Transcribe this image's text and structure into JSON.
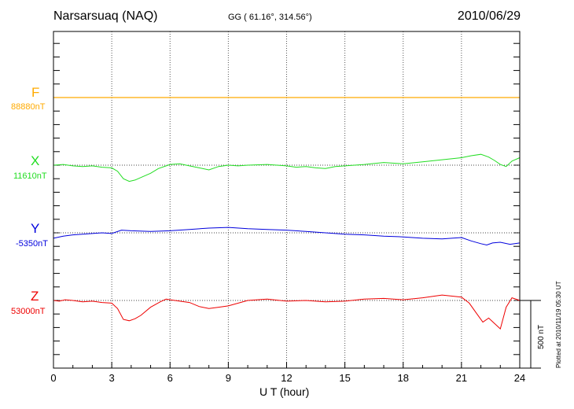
{
  "header": {
    "station": "Narsarsuaq (NAQ)",
    "coords": "GG ( 61.16°, 314.56°)",
    "date": "2010/06/29"
  },
  "scale_label": "500 nT",
  "plotted_stamp": "Plotted at 2010/11/19 05:30 UT",
  "chart_data": {
    "type": "line",
    "xlabel": "U T (hour)",
    "xlim": [
      0,
      24
    ],
    "xticks": [
      0,
      3,
      6,
      9,
      12,
      15,
      18,
      21,
      24
    ],
    "scale_bar_nT": 500,
    "series": [
      {
        "name": "F",
        "baseline": "88880nT",
        "color": "#ffaa00",
        "x": [
          0,
          24
        ],
        "y": [
          0,
          0
        ]
      },
      {
        "name": "X",
        "baseline": "11610nT",
        "color": "#22dd22",
        "x": [
          0,
          0.5,
          1,
          1.5,
          2,
          2.5,
          3,
          3.3,
          3.6,
          3.9,
          4.2,
          4.6,
          5,
          5.4,
          5.8,
          6,
          6.5,
          7,
          7.5,
          8,
          8.5,
          9,
          9.5,
          10,
          11,
          12,
          12.5,
          13,
          13.5,
          14,
          14.5,
          15,
          15.5,
          16,
          17,
          18,
          19,
          20,
          21,
          21.5,
          22,
          22.4,
          22.7,
          23,
          23.3,
          23.6,
          24
        ],
        "y": [
          0,
          5,
          -5,
          -10,
          -5,
          -15,
          -20,
          -45,
          -100,
          -120,
          -110,
          -85,
          -60,
          -25,
          -5,
          5,
          10,
          -5,
          -20,
          -35,
          -10,
          0,
          -5,
          0,
          5,
          -5,
          -15,
          -10,
          -20,
          -25,
          -10,
          -5,
          0,
          5,
          20,
          10,
          25,
          40,
          55,
          70,
          80,
          60,
          35,
          5,
          -10,
          30,
          55
        ]
      },
      {
        "name": "Y",
        "baseline": "-5350nT",
        "color": "#0000dd",
        "x": [
          0,
          0.5,
          1,
          1.5,
          2,
          2.5,
          3,
          3.5,
          4,
          5,
          6,
          7,
          8,
          9,
          10,
          11,
          12,
          13,
          14,
          15,
          16,
          17,
          18,
          19,
          20,
          21,
          21.5,
          22,
          22.3,
          22.6,
          23,
          23.5,
          24
        ],
        "y": [
          -40,
          -25,
          -15,
          -10,
          -5,
          0,
          -5,
          20,
          15,
          10,
          15,
          25,
          35,
          40,
          30,
          25,
          20,
          10,
          0,
          -10,
          -15,
          -25,
          -30,
          -40,
          -45,
          -35,
          -60,
          -80,
          -90,
          -75,
          -70,
          -85,
          -75
        ]
      },
      {
        "name": "Z",
        "baseline": "53000nT",
        "color": "#ee0000",
        "x": [
          0,
          0.3,
          0.6,
          1,
          1.5,
          2,
          2.5,
          3,
          3.3,
          3.6,
          3.9,
          4.2,
          4.5,
          5,
          5.5,
          5.8,
          6,
          6.5,
          7,
          7.5,
          8,
          8.5,
          9,
          10,
          11,
          12,
          13,
          14,
          15,
          16,
          17,
          18,
          19,
          20,
          21,
          21.4,
          21.8,
          22.1,
          22.4,
          22.7,
          23,
          23.3,
          23.6,
          24
        ],
        "y": [
          0,
          -5,
          5,
          0,
          -10,
          -5,
          -15,
          -20,
          -60,
          -140,
          -150,
          -135,
          -110,
          -50,
          -10,
          10,
          5,
          -5,
          -15,
          -45,
          -60,
          -50,
          -40,
          0,
          10,
          -5,
          0,
          -10,
          -5,
          10,
          15,
          5,
          20,
          40,
          25,
          -20,
          -100,
          -160,
          -130,
          -170,
          -210,
          -50,
          20,
          0
        ]
      }
    ]
  }
}
